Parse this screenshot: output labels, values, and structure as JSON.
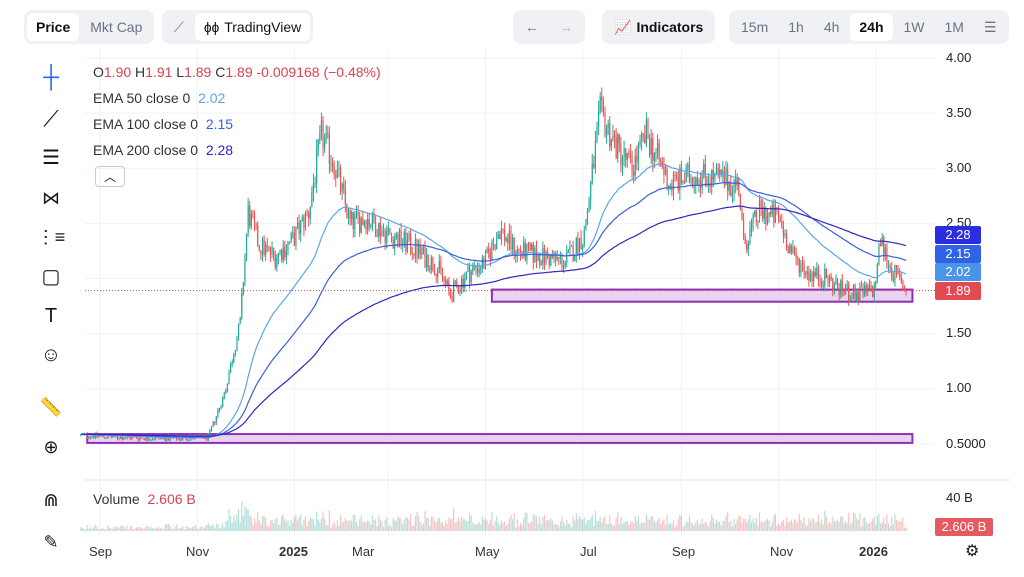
{
  "toolbar": {
    "price": "Price",
    "mktcap": "Mkt Cap",
    "tradingview": "TradingView",
    "indicators": "Indicators",
    "intervals": [
      "15m",
      "1h",
      "4h",
      "24h",
      "1W",
      "1M"
    ],
    "active_interval": "24h"
  },
  "legend": {
    "o_label": "O",
    "o": "1.90",
    "h_label": "H",
    "h": "1.91",
    "l_label": "L",
    "l": "1.89",
    "c_label": "C",
    "c": "1.89",
    "change": "-0.009168 (−0.48%)",
    "ema50_label": "EMA 50 close 0",
    "ema50": "2.02",
    "ema100_label": "EMA 100 close 0",
    "ema100": "2.15",
    "ema200_label": "EMA 200 close 0",
    "ema200": "2.28"
  },
  "volume": {
    "label": "Volume",
    "value": "2.606 B",
    "axis_label": "40 B",
    "tag": "2.606 B"
  },
  "colors": {
    "up": "#26a69a",
    "down": "#ef5350",
    "ema50": "#5aa7e8",
    "ema100": "#3a5fd9",
    "ema200": "#3125c4",
    "zone": "#8e2fb5",
    "tag_price": "#e04b52"
  },
  "chart_data": {
    "type": "candlestick",
    "y_ticks": [
      "4.00",
      "3.50",
      "3.00",
      "2.50",
      "1.50",
      "1.00",
      "0.5000"
    ],
    "y_tick_values": [
      4.0,
      3.5,
      3.0,
      2.5,
      1.5,
      1.0,
      0.5
    ],
    "x_ticks": [
      "Sep",
      "Nov",
      "2025",
      "Mar",
      "May",
      "Jul",
      "Sep",
      "Nov",
      "2026"
    ],
    "x_tick_dates": [
      "2024-09-01",
      "2024-11-01",
      "2025-01-01",
      "2025-03-01",
      "2025-05-01",
      "2025-07-01",
      "2025-09-01",
      "2025-11-01",
      "2026-01-01"
    ],
    "ylim": [
      0.5,
      4.0
    ],
    "close_path": [
      [
        "2024-08-20",
        0.58
      ],
      [
        "2024-09-15",
        0.56
      ],
      [
        "2024-10-15",
        0.55
      ],
      [
        "2024-11-08",
        0.56
      ],
      [
        "2024-11-18",
        0.95
      ],
      [
        "2024-11-28",
        1.6
      ],
      [
        "2024-12-03",
        2.6
      ],
      [
        "2024-12-10",
        2.3
      ],
      [
        "2024-12-20",
        2.2
      ],
      [
        "2024-12-31",
        2.35
      ],
      [
        "2025-01-10",
        2.6
      ],
      [
        "2025-01-18",
        3.3
      ],
      [
        "2025-01-26",
        3.05
      ],
      [
        "2025-02-05",
        2.5
      ],
      [
        "2025-02-15",
        2.55
      ],
      [
        "2025-03-01",
        2.4
      ],
      [
        "2025-03-15",
        2.3
      ],
      [
        "2025-04-01",
        2.1
      ],
      [
        "2025-04-09",
        1.85
      ],
      [
        "2025-04-20",
        2.05
      ],
      [
        "2025-05-01",
        2.15
      ],
      [
        "2025-05-10",
        2.45
      ],
      [
        "2025-05-20",
        2.25
      ],
      [
        "2025-06-05",
        2.2
      ],
      [
        "2025-06-20",
        2.15
      ],
      [
        "2025-07-02",
        2.4
      ],
      [
        "2025-07-12",
        3.5
      ],
      [
        "2025-07-22",
        3.2
      ],
      [
        "2025-08-01",
        3.0
      ],
      [
        "2025-08-10",
        3.3
      ],
      [
        "2025-08-25",
        2.85
      ],
      [
        "2025-09-10",
        2.95
      ],
      [
        "2025-09-25",
        2.9
      ],
      [
        "2025-10-07",
        2.85
      ],
      [
        "2025-10-10",
        2.3
      ],
      [
        "2025-10-20",
        2.6
      ],
      [
        "2025-11-01",
        2.55
      ],
      [
        "2025-11-10",
        2.2
      ],
      [
        "2025-11-20",
        2.05
      ],
      [
        "2025-12-01",
        2.0
      ],
      [
        "2025-12-10",
        1.9
      ],
      [
        "2025-12-20",
        1.85
      ],
      [
        "2025-12-31",
        1.9
      ],
      [
        "2026-01-04",
        2.35
      ],
      [
        "2026-01-10",
        2.1
      ],
      [
        "2026-01-20",
        1.89
      ]
    ],
    "last_price": 1.89,
    "ema_last": {
      "ema50": 2.02,
      "ema100": 2.15,
      "ema200": 2.28
    },
    "zones": [
      {
        "from": "2025-05-05",
        "to": "2026-01-24",
        "low": 1.79,
        "high": 1.9
      },
      {
        "from": "2024-08-24",
        "to": "2026-01-24",
        "low": 0.51,
        "high": 0.59
      }
    ]
  }
}
